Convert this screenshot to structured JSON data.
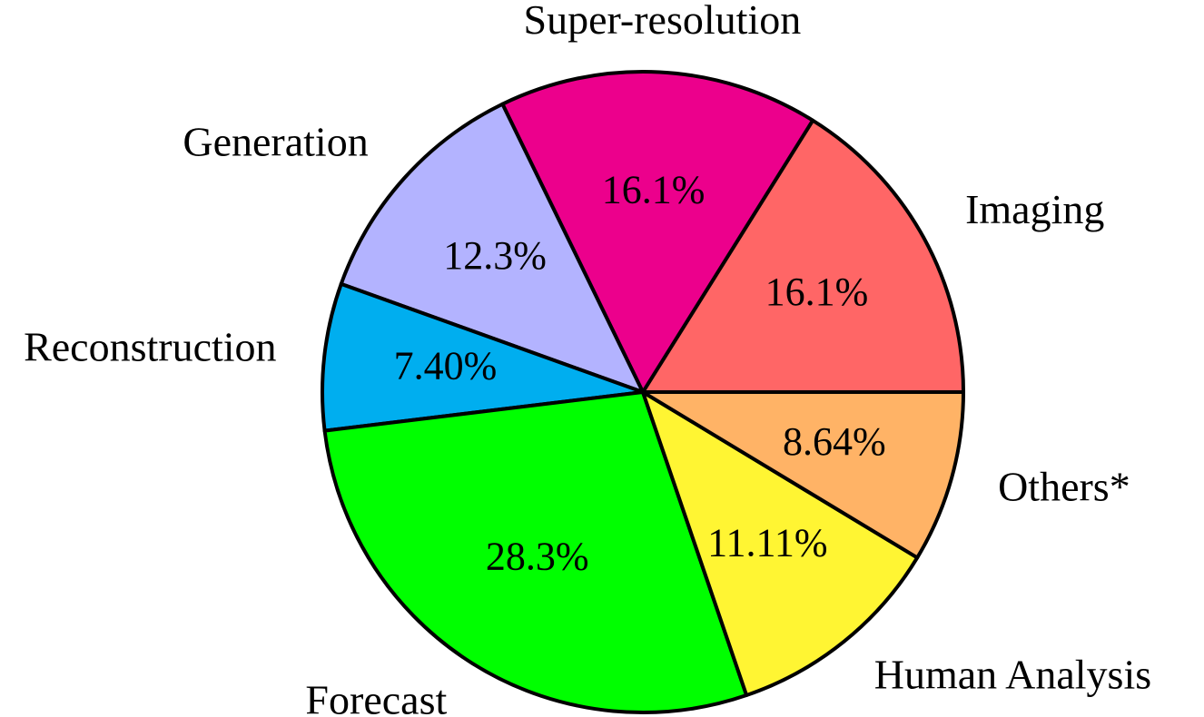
{
  "chart_data": {
    "type": "pie",
    "start_angle_deg": 0,
    "direction": "counterclockwise",
    "slices": [
      {
        "label": "Imaging",
        "pct_label": "16.1%",
        "value": 16.1,
        "color": "#FF6666"
      },
      {
        "label": "Super-resolution",
        "pct_label": "16.1%",
        "value": 16.1,
        "color": "#EC008C"
      },
      {
        "label": "Generation",
        "pct_label": "12.3%",
        "value": 12.3,
        "color": "#B3B3FF"
      },
      {
        "label": "Reconstruction",
        "pct_label": "7.40%",
        "value": 7.4,
        "color": "#00AEEF"
      },
      {
        "label": "Forecast",
        "pct_label": "28.3%",
        "value": 28.3,
        "color": "#00FF00"
      },
      {
        "label": "Human Analysis",
        "pct_label": "11.11%",
        "value": 11.11,
        "color": "#FFF533"
      },
      {
        "label": "Others*",
        "pct_label": "8.64%",
        "value": 8.64,
        "color": "#FFB366"
      }
    ]
  }
}
